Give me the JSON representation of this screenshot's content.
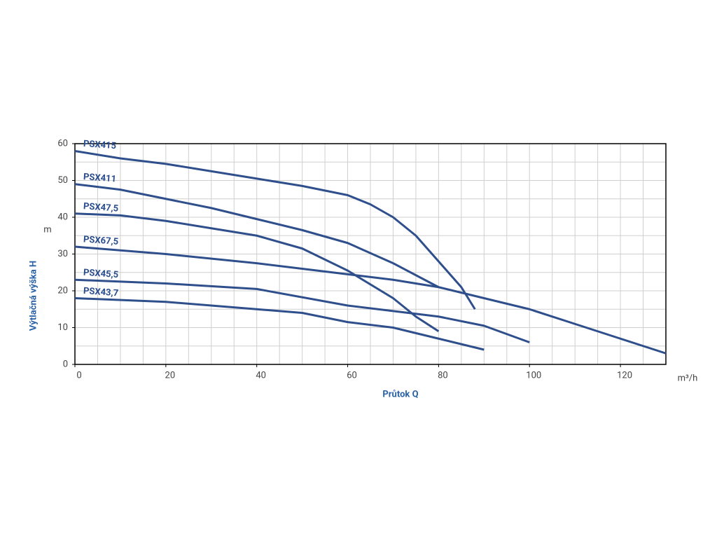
{
  "chart_data": {
    "type": "line",
    "xlabel": "Průtok Q",
    "ylabel": "Výtlačná výška H",
    "x_unit": "m³/h",
    "y_unit": "m",
    "xlim": [
      0,
      130
    ],
    "ylim": [
      0,
      60
    ],
    "xticks": [
      0,
      20,
      40,
      60,
      80,
      100,
      120
    ],
    "yticks": [
      0,
      10,
      20,
      30,
      40,
      50,
      60
    ],
    "x_gridlines": [
      5,
      10,
      15,
      20,
      25,
      30,
      35,
      40,
      45,
      50,
      55,
      60,
      65,
      70,
      75,
      80,
      85,
      90,
      95,
      100,
      105,
      110,
      115,
      120,
      125
    ],
    "y_gridlines": [
      5,
      10,
      15,
      20,
      25,
      30,
      35,
      40,
      45,
      50,
      55
    ],
    "color": "#2f4f8c",
    "series": [
      {
        "name": "PSX415",
        "x": [
          0,
          10,
          20,
          30,
          40,
          50,
          60,
          65,
          70,
          75,
          80,
          85,
          88
        ],
        "values": [
          58,
          56,
          54.5,
          52.5,
          50.5,
          48.5,
          46,
          43.5,
          40,
          35,
          28,
          21,
          15
        ]
      },
      {
        "name": "PSX411",
        "x": [
          0,
          10,
          20,
          30,
          40,
          50,
          60,
          70,
          80
        ],
        "values": [
          49,
          47.5,
          45,
          42.5,
          39.5,
          36.5,
          33,
          27.5,
          21
        ]
      },
      {
        "name": "PSX47,5",
        "x": [
          0,
          10,
          20,
          30,
          40,
          50,
          60,
          70,
          75,
          80
        ],
        "values": [
          41,
          40.5,
          39,
          37,
          35,
          31.5,
          25.5,
          18,
          13,
          9
        ]
      },
      {
        "name": "PSX67,5",
        "x": [
          0,
          20,
          40,
          60,
          70,
          80,
          90,
          100,
          110,
          120,
          130
        ],
        "values": [
          32,
          30,
          27.5,
          24.5,
          23,
          21,
          18,
          15,
          11,
          7,
          3
        ]
      },
      {
        "name": "PSX45,5",
        "x": [
          0,
          20,
          40,
          60,
          80,
          90,
          100
        ],
        "values": [
          23,
          22,
          20.5,
          16,
          13,
          10.5,
          6
        ]
      },
      {
        "name": "PSX43,7",
        "x": [
          0,
          20,
          40,
          50,
          60,
          70,
          80,
          90
        ],
        "values": [
          18,
          17,
          15,
          14,
          11.5,
          10,
          7,
          4
        ]
      }
    ]
  }
}
